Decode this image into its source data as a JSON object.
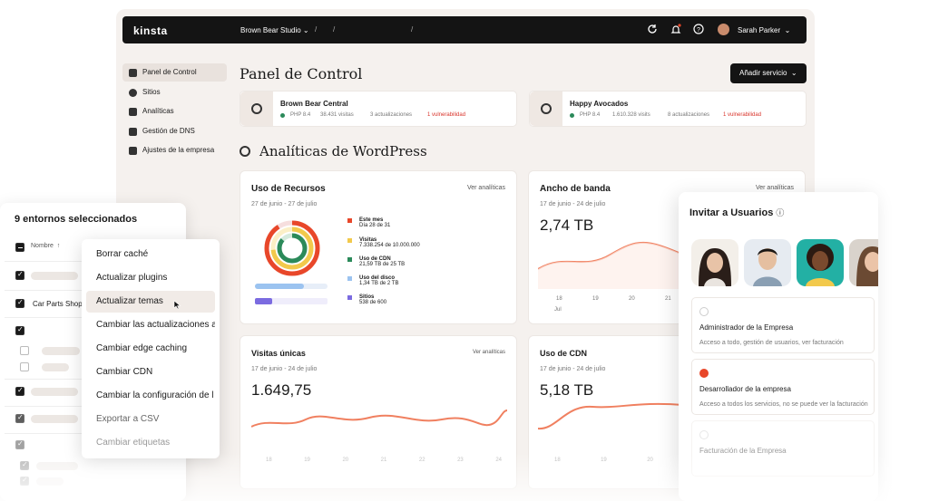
{
  "app": {
    "logo": "kinsta"
  },
  "topbar": {
    "workspace": "Brown Bear Studio",
    "sep1": "/",
    "sep2": "/",
    "sep3": "/",
    "user_name": "Sarah Parker"
  },
  "sidebar": {
    "items": [
      {
        "label": "Panel de Control",
        "icon": "home-icon"
      },
      {
        "label": "Sitios",
        "icon": "wordpress-icon"
      },
      {
        "label": "Analíticas",
        "icon": "chart-icon"
      },
      {
        "label": "Gestión de DNS",
        "icon": "dns-icon"
      },
      {
        "label": "Ajustes de la empresa",
        "icon": "building-icon"
      }
    ]
  },
  "main": {
    "title": "Panel de Control",
    "add_service": "Añadir servicio",
    "section_title": "Analíticas de WordPress"
  },
  "sites": [
    {
      "name": "Brown Bear Central",
      "php": "PHP 8.4",
      "visits": "38.431 visitas",
      "updates": "3 actualizaciones",
      "vuln": "1 vulnerabilidad"
    },
    {
      "name": "Happy Avocados",
      "php": "PHP 8.4",
      "visits": "1.610.328 visits",
      "updates": "8 actualizaciones",
      "vuln": "1 vulnerabilidad"
    }
  ],
  "cards": {
    "recursos": {
      "title": "Uso de Recursos",
      "link": "Ver analíticas",
      "dates": "27 de junio - 27 de julio",
      "legend": [
        {
          "name": "Este mes",
          "sub": "Día 28 de 31",
          "color": "#e8472a"
        },
        {
          "name": "Visitas",
          "sub": "7.338.254 de 10.000.000",
          "color": "#f2c94c"
        },
        {
          "name": "Uso de CDN",
          "sub": "21,59 TB de 25 TB",
          "color": "#2b8a5a"
        },
        {
          "name": "Uso del disco",
          "sub": "1,34 TB de 2 TB",
          "color": "#9bc3f0"
        },
        {
          "name": "Sitios",
          "sub": "538 de 600",
          "color": "#7b6be0"
        }
      ]
    },
    "ancho": {
      "title": "Ancho de banda",
      "link": "Ver analíticas",
      "dates": "17 de junio - 24 de julio",
      "value": "2,74 TB",
      "ticks": [
        "18",
        "19",
        "20",
        "21"
      ],
      "month": "Jul"
    },
    "visitas": {
      "title": "Visitas únicas",
      "link": "Ver analíticas",
      "dates": "17 de junio - 24 de julio",
      "value": "1.649,75",
      "ticks": [
        "18",
        "19",
        "20",
        "21",
        "22",
        "23",
        "24"
      ]
    },
    "cdn": {
      "title": "Uso de CDN",
      "dates": "17 de junio - 24 de julio",
      "value": "5,18 TB",
      "ticks": [
        "18",
        "19",
        "20",
        "21",
        "22",
        "23",
        "24"
      ]
    }
  },
  "selection": {
    "title": "9 entornos seleccionados",
    "col_name": "Nombre",
    "row_label": "Car Parts Shop"
  },
  "menu": {
    "items": [
      "Borrar caché",
      "Actualizar plugins",
      "Actualizar temas",
      "Cambiar las actualizaciones a",
      "Cambiar edge caching",
      "Cambiar CDN",
      "Cambiar la configuración de l",
      "Exportar a CSV",
      "Cambiar etiquetas"
    ]
  },
  "invite": {
    "title": "Invitar a Usuarios",
    "roles": [
      {
        "name": "Administrador de la Empresa",
        "desc": "Acceso a todo, gestión de usuarios, ver facturación"
      },
      {
        "name": "Desarrollador de la empresa",
        "desc": "Acceso a todos los servicios, no se puede ver la facturación"
      },
      {
        "name": "Facturación de la Empresa",
        "desc": ""
      }
    ]
  },
  "colors": {
    "accent": "#e8472a",
    "dark": "#141414",
    "bg": "#f5f1ee"
  }
}
